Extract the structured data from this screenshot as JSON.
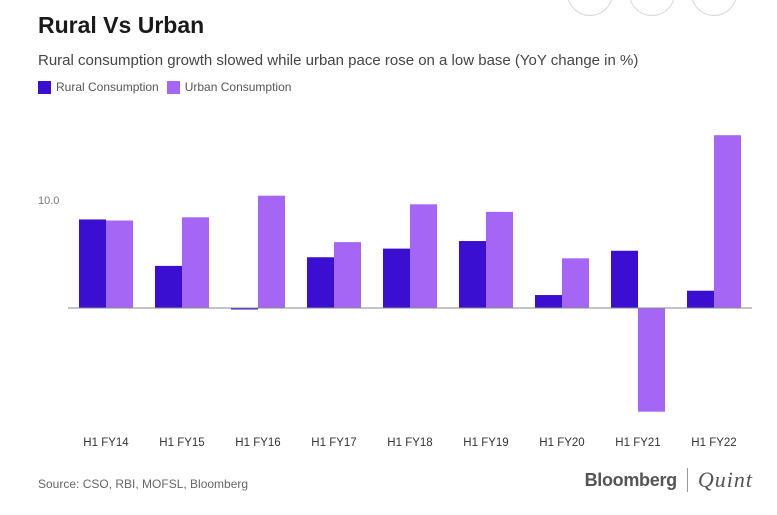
{
  "chart_data": {
    "type": "bar",
    "title": "Rural Vs Urban",
    "subtitle": "Rural consumption growth slowed while urban pace rose on a low base (YoY change in %)",
    "categories": [
      "H1 FY14",
      "H1 FY15",
      "H1 FY16",
      "H1 FY17",
      "H1 FY18",
      "H1 FY19",
      "H1 FY20",
      "H1 FY21",
      "H1 FY22"
    ],
    "series": [
      {
        "name": "Rural Consumption",
        "color": "#3a0fd1",
        "values": [
          8.2,
          3.9,
          -0.1,
          4.7,
          5.5,
          6.2,
          1.2,
          5.3,
          1.6
        ]
      },
      {
        "name": "Urban Consumption",
        "color": "#a566f5",
        "values": [
          8.1,
          8.4,
          10.4,
          6.1,
          9.6,
          8.9,
          4.6,
          -9.6,
          16.0
        ]
      }
    ],
    "y_tick_labels": [
      {
        "value": 10,
        "label": "10.0"
      }
    ],
    "ylim": [
      -10.5,
      17
    ],
    "grid": false,
    "legend": "top-left"
  },
  "source": "Source: CSO, RBI, MOFSL, Bloomberg",
  "brand": {
    "bloomberg": "Bloomberg",
    "quint": "Quint"
  }
}
